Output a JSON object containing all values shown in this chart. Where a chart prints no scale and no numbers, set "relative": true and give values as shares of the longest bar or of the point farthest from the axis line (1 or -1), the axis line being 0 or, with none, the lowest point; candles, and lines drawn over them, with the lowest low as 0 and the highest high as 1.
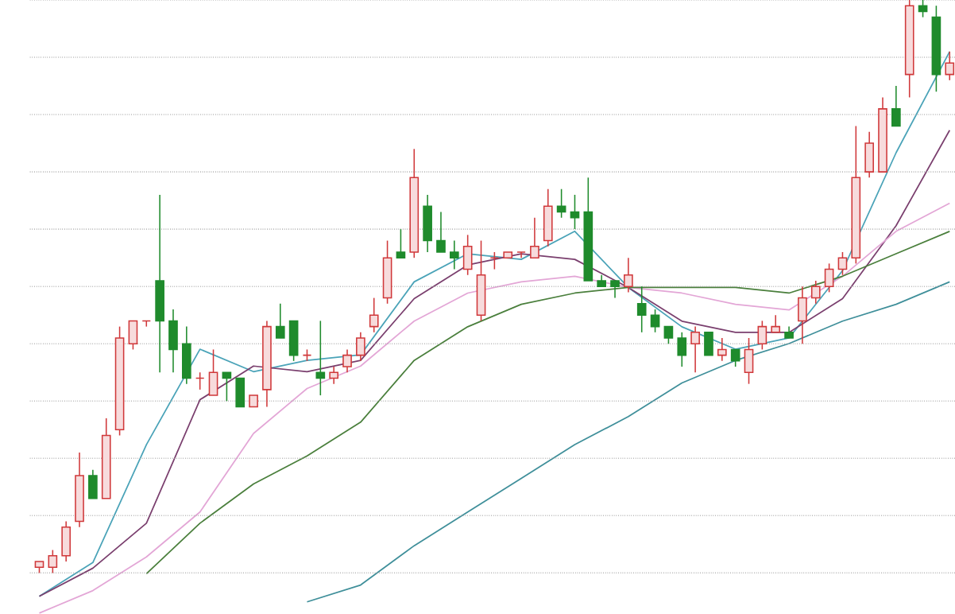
{
  "chart_data": [
    {
      "type": "candlestick",
      "relative": true,
      "grid": "y",
      "categories": [
        null,
        null,
        null,
        null,
        null,
        null,
        null,
        null,
        null,
        null,
        null,
        null,
        null,
        null,
        null,
        null,
        null,
        null,
        null,
        null,
        null,
        null,
        null,
        null,
        null,
        null,
        null,
        null,
        null,
        null,
        null,
        null,
        null,
        null,
        null,
        null,
        null,
        null,
        null,
        null,
        null,
        null,
        null,
        null,
        null,
        null,
        null,
        null,
        null,
        null,
        null,
        null,
        null,
        null,
        null,
        null,
        null,
        null,
        null,
        null,
        null,
        null,
        null,
        null,
        null,
        null,
        null,
        null,
        null
      ],
      "ohlc": [
        [
          0.01,
          0.02,
          0,
          0.02
        ],
        [
          0.01,
          0.04,
          0,
          0.03
        ],
        [
          0.03,
          0.09,
          0.02,
          0.08
        ],
        [
          0.09,
          0.21,
          0.08,
          0.17
        ],
        [
          0.17,
          0.18,
          0.13,
          0.13
        ],
        [
          0.13,
          0.27,
          0.13,
          0.24
        ],
        [
          0.25,
          0.43,
          0.24,
          0.41
        ],
        [
          0.4,
          0.44,
          0.39,
          0.44
        ],
        [
          0.44,
          0.44,
          0.43,
          0.44
        ],
        [
          0.51,
          0.66,
          0.35,
          0.44
        ],
        [
          0.44,
          0.46,
          0.35,
          0.39
        ],
        [
          0.4,
          0.43,
          0.33,
          0.34
        ],
        [
          0.34,
          0.35,
          0.32,
          0.34
        ],
        [
          0.31,
          0.39,
          0.31,
          0.35
        ],
        [
          0.35,
          0.35,
          0.3,
          0.34
        ],
        [
          0.34,
          0.34,
          0.29,
          0.29
        ],
        [
          0.29,
          0.31,
          0.29,
          0.31
        ],
        [
          0.32,
          0.44,
          0.29,
          0.43
        ],
        [
          0.43,
          0.47,
          0.41,
          0.41
        ],
        [
          0.44,
          0.44,
          0.37,
          0.38
        ],
        [
          0.38,
          0.39,
          0.37,
          0.38
        ],
        [
          0.35,
          0.44,
          0.31,
          0.34
        ],
        [
          0.34,
          0.36,
          0.33,
          0.35
        ],
        [
          0.36,
          0.39,
          0.35,
          0.38
        ],
        [
          0.38,
          0.42,
          0.37,
          0.41
        ],
        [
          0.43,
          0.48,
          0.42,
          0.45
        ],
        [
          0.48,
          0.58,
          0.47,
          0.55
        ],
        [
          0.56,
          0.6,
          0.55,
          0.55
        ],
        [
          0.56,
          0.74,
          0.55,
          0.69
        ],
        [
          0.64,
          0.66,
          0.56,
          0.58
        ],
        [
          0.58,
          0.63,
          0.56,
          0.56
        ],
        [
          0.56,
          0.58,
          0.53,
          0.55
        ],
        [
          0.53,
          0.59,
          0.52,
          0.57
        ],
        [
          0.45,
          0.58,
          0.44,
          0.52
        ],
        [
          0.55,
          0.56,
          0.53,
          0.55
        ],
        [
          0.55,
          0.56,
          0.55,
          0.56
        ],
        [
          0.56,
          0.56,
          0.55,
          0.56
        ],
        [
          0.55,
          0.62,
          0.55,
          0.57
        ],
        [
          0.58,
          0.67,
          0.57,
          0.64
        ],
        [
          0.64,
          0.67,
          0.62,
          0.63
        ],
        [
          0.63,
          0.66,
          0.6,
          0.62
        ],
        [
          0.63,
          0.69,
          0.51,
          0.51
        ],
        [
          0.51,
          0.52,
          0.5,
          0.5
        ],
        [
          0.51,
          0.51,
          0.48,
          0.5
        ],
        [
          0.5,
          0.55,
          0.49,
          0.52
        ],
        [
          0.47,
          0.5,
          0.42,
          0.45
        ],
        [
          0.45,
          0.46,
          0.42,
          0.43
        ],
        [
          0.43,
          0.43,
          0.4,
          0.41
        ],
        [
          0.41,
          0.42,
          0.36,
          0.38
        ],
        [
          0.4,
          0.43,
          0.35,
          0.42
        ],
        [
          0.42,
          0.42,
          0.38,
          0.38
        ],
        [
          0.38,
          0.41,
          0.37,
          0.39
        ],
        [
          0.39,
          0.39,
          0.36,
          0.37
        ],
        [
          0.35,
          0.41,
          0.33,
          0.39
        ],
        [
          0.4,
          0.44,
          0.39,
          0.43
        ],
        [
          0.42,
          0.45,
          0.42,
          0.43
        ],
        [
          0.42,
          0.43,
          0.41,
          0.41
        ],
        [
          0.44,
          0.5,
          0.4,
          0.48
        ],
        [
          0.48,
          0.51,
          0.47,
          0.5
        ],
        [
          0.5,
          0.54,
          0.49,
          0.53
        ],
        [
          0.53,
          0.56,
          0.52,
          0.55
        ],
        [
          0.55,
          0.78,
          0.54,
          0.69
        ],
        [
          0.7,
          0.77,
          0.69,
          0.75
        ],
        [
          0.7,
          0.83,
          0.7,
          0.81
        ],
        [
          0.81,
          0.85,
          0.78,
          0.78
        ],
        [
          0.87,
          1.0,
          0.83,
          0.99
        ],
        [
          0.99,
          1.0,
          0.97,
          0.98
        ],
        [
          0.97,
          0.99,
          0.84,
          0.87
        ],
        [
          0.87,
          0.91,
          0.86,
          0.89
        ]
      ]
    },
    {
      "type": "line",
      "relative": true,
      "categories": [
        null,
        null,
        null,
        null,
        null,
        null,
        null,
        null,
        null,
        null,
        null,
        null,
        null,
        null,
        null,
        null,
        null,
        null
      ],
      "series": [
        {
          "color": "#4aa3b8",
          "values": [
            0.03,
            0.09,
            0.3,
            0.47,
            0.43,
            0.45,
            0.46,
            0.59,
            0.64,
            0.63,
            0.68,
            0.58,
            0.51,
            0.47,
            0.49,
            0.61,
            0.82,
            1.0
          ]
        },
        {
          "color": "#7a3f6e",
          "values": [
            0.03,
            0.08,
            0.16,
            0.38,
            0.44,
            0.43,
            0.45,
            0.56,
            0.62,
            0.64,
            0.63,
            0.58,
            0.52,
            0.5,
            0.5,
            0.56,
            0.69,
            0.86
          ]
        },
        {
          "color": "#e3a6d6",
          "values": [
            0,
            0.04,
            0.1,
            0.18,
            0.32,
            0.4,
            0.44,
            0.52,
            0.57,
            0.59,
            0.6,
            0.58,
            0.57,
            0.55,
            0.54,
            0.6,
            0.68,
            0.73
          ]
        },
        {
          "color": "#4a7f3c",
          "values": [
            null,
            null,
            0.07,
            0.16,
            0.23,
            0.28,
            0.34,
            0.45,
            0.51,
            0.55,
            0.57,
            0.58,
            0.58,
            0.58,
            0.57,
            0.6,
            0.64,
            0.68
          ]
        },
        {
          "color": "#3f8f9a",
          "values": [
            null,
            null,
            null,
            null,
            null,
            0.02,
            0.05,
            0.12,
            0.18,
            0.24,
            0.3,
            0.35,
            0.41,
            0.45,
            0.48,
            0.52,
            0.55,
            0.59
          ]
        }
      ]
    }
  ]
}
